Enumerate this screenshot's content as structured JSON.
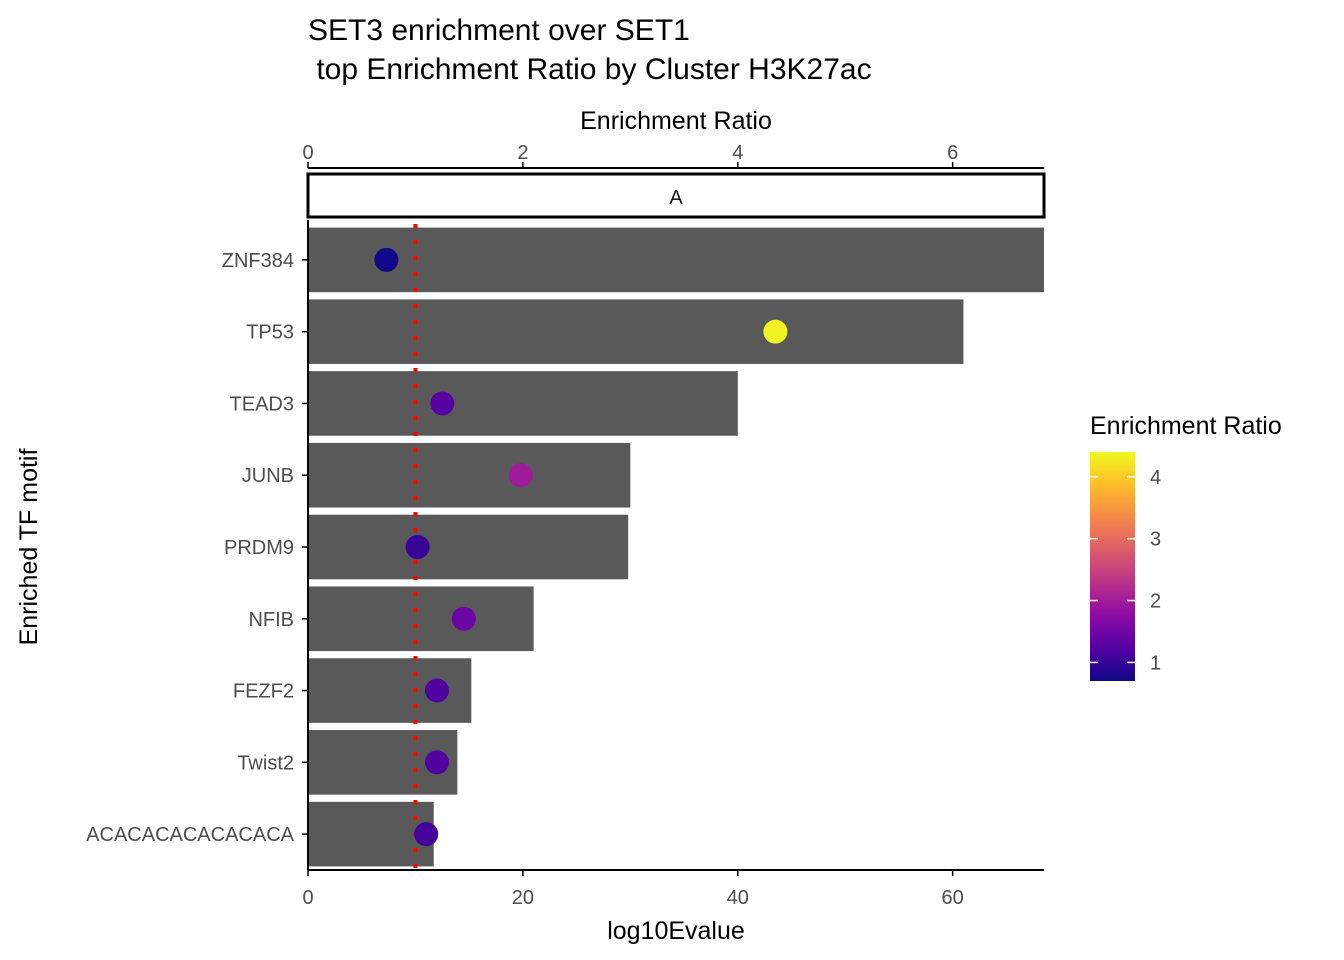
{
  "chart_data": {
    "type": "bar",
    "title_line1": "SET3 enrichment over SET1",
    "title_line2": " top Enrichment Ratio by Cluster H3K27ac",
    "facet_label": "A",
    "xlabel": "log10Evalue",
    "ylabel": "Enriched TF motif",
    "secondary_xlabel": "Enrichment Ratio",
    "xlim": [
      0,
      68.5
    ],
    "x_ticks": [
      0,
      20,
      40,
      60
    ],
    "secondary_xlim": [
      0,
      6.85
    ],
    "secondary_x_ticks": [
      0,
      2,
      4,
      6
    ],
    "threshold_line": 10,
    "categories": [
      "ZNF384",
      "TP53",
      "TEAD3",
      "JUNB",
      "PRDM9",
      "NFIB",
      "FEZF2",
      "Twist2",
      "ACACACACACACACA"
    ],
    "bar_values": [
      68.5,
      61,
      40,
      30,
      29.8,
      21,
      15.2,
      13.9,
      11.7
    ],
    "point_values": [
      0.73,
      4.35,
      1.25,
      1.98,
      1.02,
      1.45,
      1.2,
      1.2,
      1.1
    ],
    "legend": {
      "title": "Enrichment Ratio",
      "min": 0.7,
      "max": 4.4,
      "ticks": [
        1,
        2,
        3,
        4
      ]
    },
    "colors": {
      "bar": "#595959",
      "threshold": "#ff0000",
      "axis": "#000000",
      "tick_text": "#4d4d4d",
      "text": "#000000",
      "viridis_plasma": [
        "#0d0887",
        "#5402a3",
        "#8b0aa5",
        "#b93289",
        "#db5c68",
        "#f48849",
        "#febd2a",
        "#f0f921"
      ]
    }
  }
}
